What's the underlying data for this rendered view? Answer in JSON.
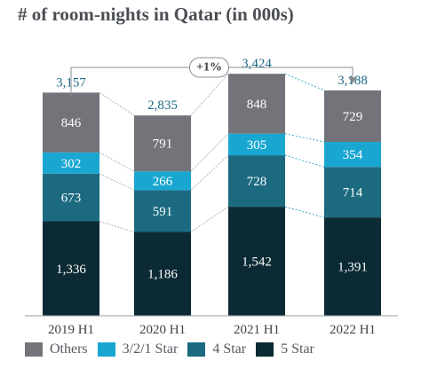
{
  "title": "# of room-nights in Qatar (in 000s)",
  "chart_data": {
    "type": "bar",
    "stacked": true,
    "categories": [
      "2019 H1",
      "2020 H1",
      "2021 H1",
      "2022 H1"
    ],
    "totals": [
      "3,157",
      "2,835",
      "3,424",
      "3,188"
    ],
    "series": [
      {
        "name": "5 Star",
        "values": [
          1336,
          1186,
          1542,
          1391
        ],
        "labels": [
          "1,336",
          "1,186",
          "1,542",
          "1,391"
        ],
        "color": "#0b2a33"
      },
      {
        "name": "4 Star",
        "values": [
          673,
          591,
          728,
          714
        ],
        "labels": [
          "673",
          "591",
          "728",
          "714"
        ],
        "color": "#1b6a80"
      },
      {
        "name": "3/2/1 Star",
        "values": [
          302,
          266,
          305,
          354
        ],
        "labels": [
          "302",
          "266",
          "305",
          "354"
        ],
        "color": "#19a7d2"
      },
      {
        "name": "Others",
        "values": [
          846,
          791,
          848,
          729
        ],
        "labels": [
          "846",
          "791",
          "848",
          "729"
        ],
        "color": "#727479"
      }
    ],
    "legend_order": [
      "Others",
      "3/2/1 Star",
      "4 Star",
      "5 Star"
    ],
    "annotation": {
      "text": "+1%",
      "from": "2019 H1",
      "to": "2022 H1"
    },
    "grid": false,
    "legend_position": "bottom"
  }
}
